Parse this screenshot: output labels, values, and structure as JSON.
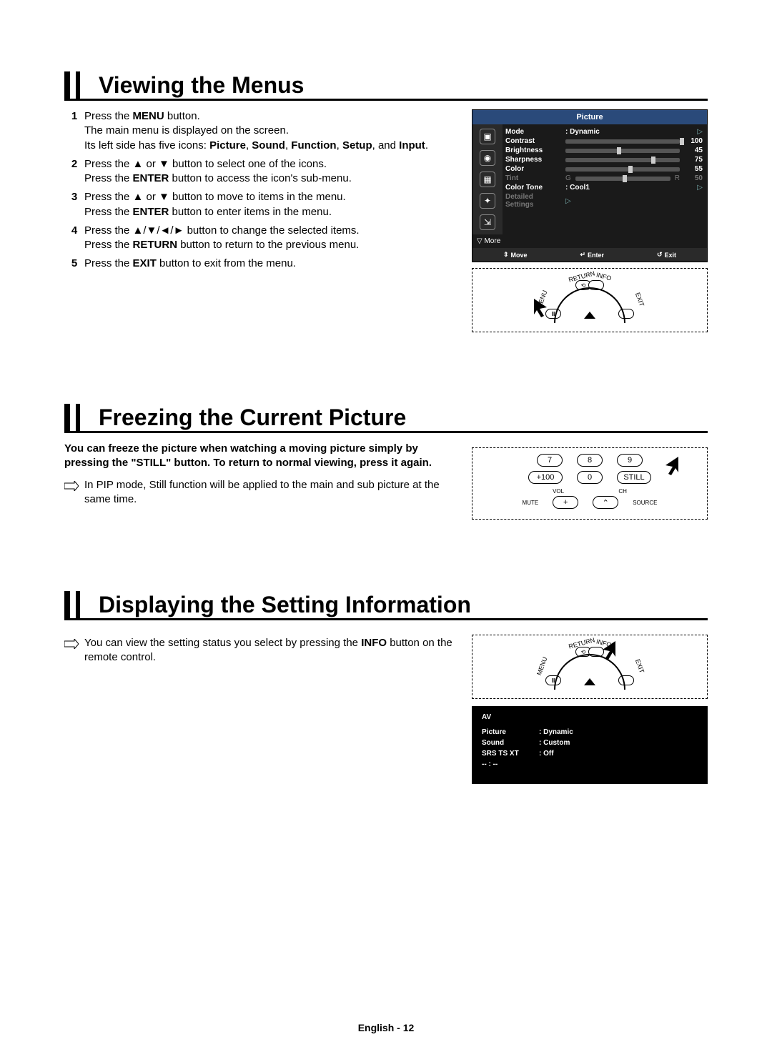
{
  "sections": {
    "viewing": {
      "title": "Viewing the Menus",
      "steps": [
        {
          "num": "1",
          "parts": [
            "Press the ",
            {
              "b": "MENU"
            },
            " button.\nThe main menu is displayed on the screen.\nIts left side has five icons: ",
            {
              "b": "Picture"
            },
            ", ",
            {
              "b": "Sound"
            },
            ", ",
            {
              "b": "Function"
            },
            ", ",
            {
              "b": "Setup"
            },
            ", and ",
            {
              "b": "Input"
            },
            "."
          ]
        },
        {
          "num": "2",
          "parts": [
            "Press the ▲ or ▼ button to select one of the icons.\nPress the ",
            {
              "b": "ENTER"
            },
            " button to access the icon's sub-menu."
          ]
        },
        {
          "num": "3",
          "parts": [
            "Press the ▲ or ▼ button to move to items in the menu.\nPress the ",
            {
              "b": "ENTER"
            },
            " button to enter items in the menu."
          ]
        },
        {
          "num": "4",
          "parts": [
            "Press the ▲/▼/◄/► button to change the selected items.\nPress the ",
            {
              "b": "RETURN"
            },
            " button to return to the previous menu."
          ]
        },
        {
          "num": "5",
          "parts": [
            "Press the ",
            {
              "b": "EXIT"
            },
            " button to exit from the menu."
          ]
        }
      ]
    },
    "freezing": {
      "title": "Freezing the Current Picture",
      "intro": "You can freeze the picture when watching a moving picture simply by pressing the \"STILL\" button. To return to normal viewing, press it again.",
      "note": "In PIP mode, Still function will be applied to the main and sub picture at the same time."
    },
    "displaying": {
      "title": "Displaying the Setting Information",
      "note_pre": "You can view the setting status you select by pressing the ",
      "note_bold": "INFO",
      "note_post": " button on the remote control."
    }
  },
  "osd": {
    "title": "Picture",
    "rows": [
      {
        "label": "Mode",
        "value": ": Dynamic",
        "arrow": true
      },
      {
        "label": "Contrast",
        "slider": 100,
        "num": "100"
      },
      {
        "label": "Brightness",
        "slider": 45,
        "num": "45"
      },
      {
        "label": "Sharpness",
        "slider": 75,
        "num": "75"
      },
      {
        "label": "Color",
        "slider": 55,
        "num": "55"
      },
      {
        "label": "Tint",
        "tint": true,
        "g": "G",
        "r": "R",
        "slider": 50,
        "num": "50",
        "dim": true
      },
      {
        "label": "Color Tone",
        "value": ": Cool1",
        "arrow": true
      },
      {
        "label": "Detailed Settings",
        "arrow": true,
        "dim": true
      }
    ],
    "more": "▽ More",
    "footer": {
      "move": "Move",
      "enter": "Enter",
      "exit": "Exit",
      "move_icon": "⇕",
      "enter_icon": "↵",
      "exit_icon": "↺"
    }
  },
  "remote_nav": {
    "return": "RETURN",
    "info": "INFO",
    "menu": "MENU",
    "exit": "EXIT"
  },
  "remote_numpad": {
    "row1": [
      "7",
      "8",
      "9"
    ],
    "row2": [
      "+100",
      "0",
      "STILL"
    ],
    "labels": {
      "vol": "VOL",
      "ch": "CH",
      "mute": "MUTE",
      "source": "SOURCE"
    }
  },
  "info_osd": {
    "header": "AV",
    "rows": [
      {
        "k": "Picture",
        "v": ": Dynamic"
      },
      {
        "k": "Sound",
        "v": ": Custom"
      },
      {
        "k": "SRS TS XT",
        "v": ": Off"
      },
      {
        "k": "-- : --",
        "v": ""
      }
    ]
  },
  "footer": "English - 12"
}
